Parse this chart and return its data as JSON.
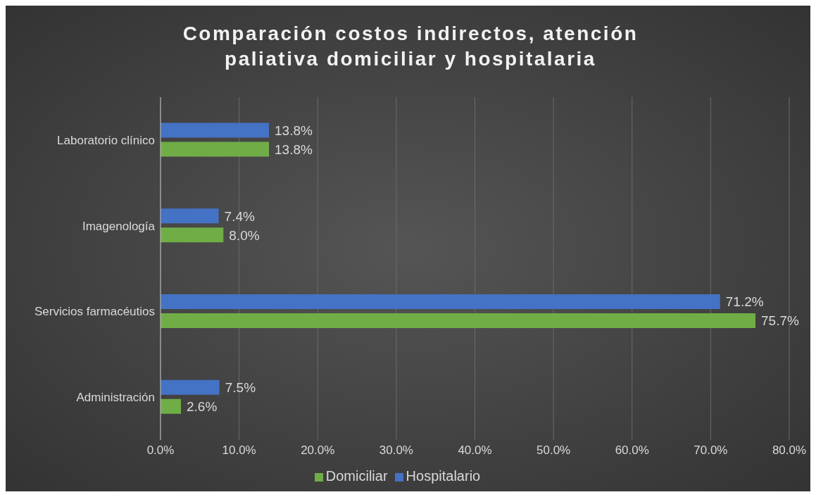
{
  "chart_data": {
    "type": "bar",
    "orientation": "horizontal",
    "title": "Comparación costos indirectos, atención paliativa domiciliar y hospitalaria",
    "categories": [
      "Laboratorio clínico",
      "Imagenología",
      "Servicios farmacéutios",
      "Administración"
    ],
    "series": [
      {
        "name": "Hospitalario",
        "color": "#4472c4",
        "values": [
          13.8,
          7.4,
          71.2,
          7.5
        ],
        "value_labels": [
          "13.8%",
          "7.4%",
          "71.2%",
          "7.5%"
        ]
      },
      {
        "name": "Domiciliar",
        "color": "#70ad47",
        "values": [
          13.8,
          8.0,
          75.7,
          2.6
        ],
        "value_labels": [
          "13.8%",
          "8.0%",
          "75.7%",
          "2.6%"
        ]
      }
    ],
    "xlim": [
      0,
      80
    ],
    "xticks": [
      {
        "value": 0,
        "label": "0.0%"
      },
      {
        "value": 10,
        "label": "10.0%"
      },
      {
        "value": 20,
        "label": "20.0%"
      },
      {
        "value": 30,
        "label": "30.0%"
      },
      {
        "value": 40,
        "label": "40.0%"
      },
      {
        "value": 50,
        "label": "50.0%"
      },
      {
        "value": 60,
        "label": "60.0%"
      },
      {
        "value": 70,
        "label": "70.0%"
      },
      {
        "value": 80,
        "label": "80.0%"
      }
    ],
    "grid": "x",
    "legend": "bottom"
  }
}
